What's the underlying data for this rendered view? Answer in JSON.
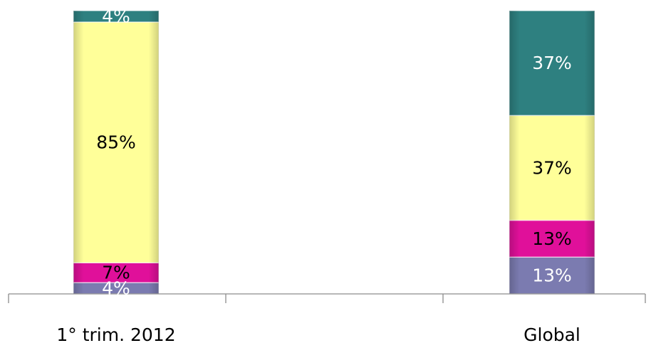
{
  "chart_data": {
    "type": "bar",
    "stacked": true,
    "percent": true,
    "categories": [
      "1° trim. 2012",
      "Global"
    ],
    "series": [
      {
        "values": [
          4,
          13
        ],
        "labels": [
          "4%",
          "13%"
        ],
        "color": "#7b7bb0",
        "label_color": "#ffffff"
      },
      {
        "values": [
          7,
          13
        ],
        "labels": [
          "7%",
          "13%"
        ],
        "color": "#e0109a",
        "label_color": "#000000"
      },
      {
        "values": [
          85,
          37
        ],
        "labels": [
          "85%",
          "37%"
        ],
        "color": "#ffff99",
        "label_color": "#000000"
      },
      {
        "values": [
          4,
          37
        ],
        "labels": [
          "4%",
          "37%"
        ],
        "color": "#2e8080",
        "label_color": "#ffffff"
      }
    ],
    "ylim": [
      0,
      100
    ],
    "grid": false,
    "legend": "none"
  }
}
